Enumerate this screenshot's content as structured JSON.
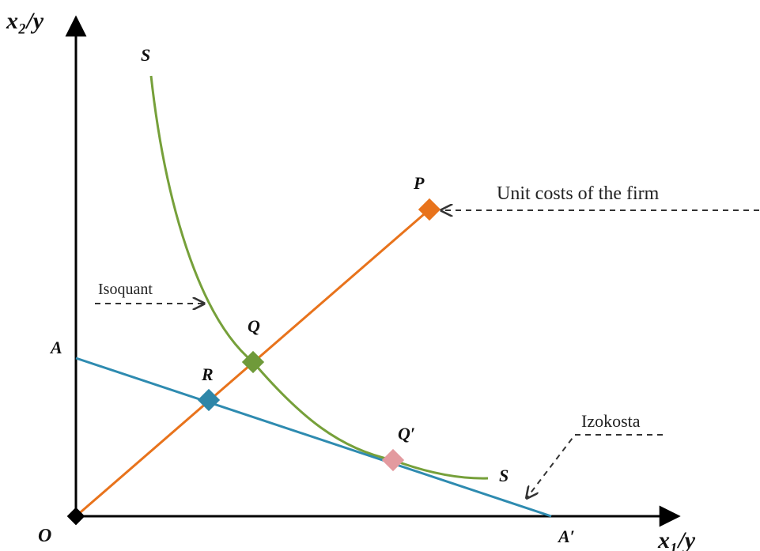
{
  "axes": {
    "y_label": "x₂/y",
    "x_label": "x₁/y",
    "origin_label": "O"
  },
  "points": {
    "A": "A",
    "A_prime": "A′",
    "P": "P",
    "Q": "Q",
    "Q_prime": "Q′",
    "R": "R",
    "S_top": "S",
    "S_bottom": "S"
  },
  "annotations": {
    "unit_costs": "Unit costs of the firm",
    "isoquant": "Isoquant",
    "izokosta": "Izokosta"
  },
  "colors": {
    "axis": "#000000",
    "isoquant_curve": "#76a03a",
    "ray_op": "#e8731c",
    "isocost_line": "#2e8bb0",
    "marker_p": "#e8731c",
    "marker_q": "#6f9a3a",
    "marker_r": "#2e86a8",
    "marker_q_prime": "#e39a9f",
    "marker_o": "#000000",
    "dashed_arrow": "#333333"
  }
}
